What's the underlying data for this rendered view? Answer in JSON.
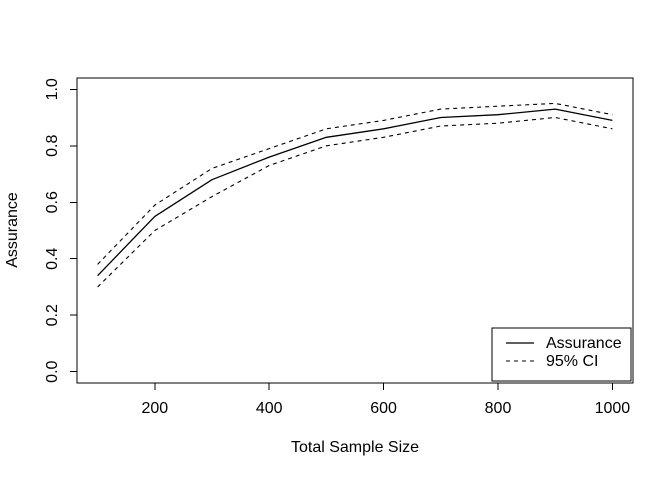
{
  "chart_data": {
    "type": "line",
    "title": "",
    "xlabel": "Total Sample Size",
    "ylabel": "Assurance",
    "xlim": [
      100,
      1000
    ],
    "ylim": [
      0,
      1
    ],
    "grid": false,
    "x": [
      100,
      200,
      300,
      400,
      500,
      600,
      700,
      800,
      900,
      1000
    ],
    "series": [
      {
        "name": "Assurance",
        "line_style": "solid",
        "values": [
          0.34,
          0.55,
          0.68,
          0.76,
          0.83,
          0.86,
          0.9,
          0.91,
          0.93,
          0.89
        ]
      },
      {
        "name": "95% CI upper",
        "line_style": "dashed",
        "values": [
          0.38,
          0.59,
          0.72,
          0.79,
          0.86,
          0.89,
          0.93,
          0.94,
          0.95,
          0.91
        ]
      },
      {
        "name": "95% CI lower",
        "line_style": "dashed",
        "values": [
          0.3,
          0.5,
          0.62,
          0.73,
          0.8,
          0.83,
          0.87,
          0.88,
          0.9,
          0.86
        ]
      }
    ],
    "x_ticks": [
      {
        "value": 200,
        "label": "200"
      },
      {
        "value": 400,
        "label": "400"
      },
      {
        "value": 600,
        "label": "600"
      },
      {
        "value": 800,
        "label": "800"
      },
      {
        "value": 1000,
        "label": "1000"
      }
    ],
    "y_ticks": [
      {
        "value": 0.0,
        "label": "0.0"
      },
      {
        "value": 0.2,
        "label": "0.2"
      },
      {
        "value": 0.4,
        "label": "0.4"
      },
      {
        "value": 0.6,
        "label": "0.6"
      },
      {
        "value": 0.8,
        "label": "0.8"
      },
      {
        "value": 1.0,
        "label": "1.0"
      }
    ],
    "legend": {
      "position": "bottom-right",
      "items": [
        {
          "label": "Assurance",
          "line_style": "solid"
        },
        {
          "label": "95% CI",
          "line_style": "dashed"
        }
      ]
    },
    "colors": {
      "line": "#000000",
      "text": "#000000",
      "background": "#ffffff"
    }
  }
}
